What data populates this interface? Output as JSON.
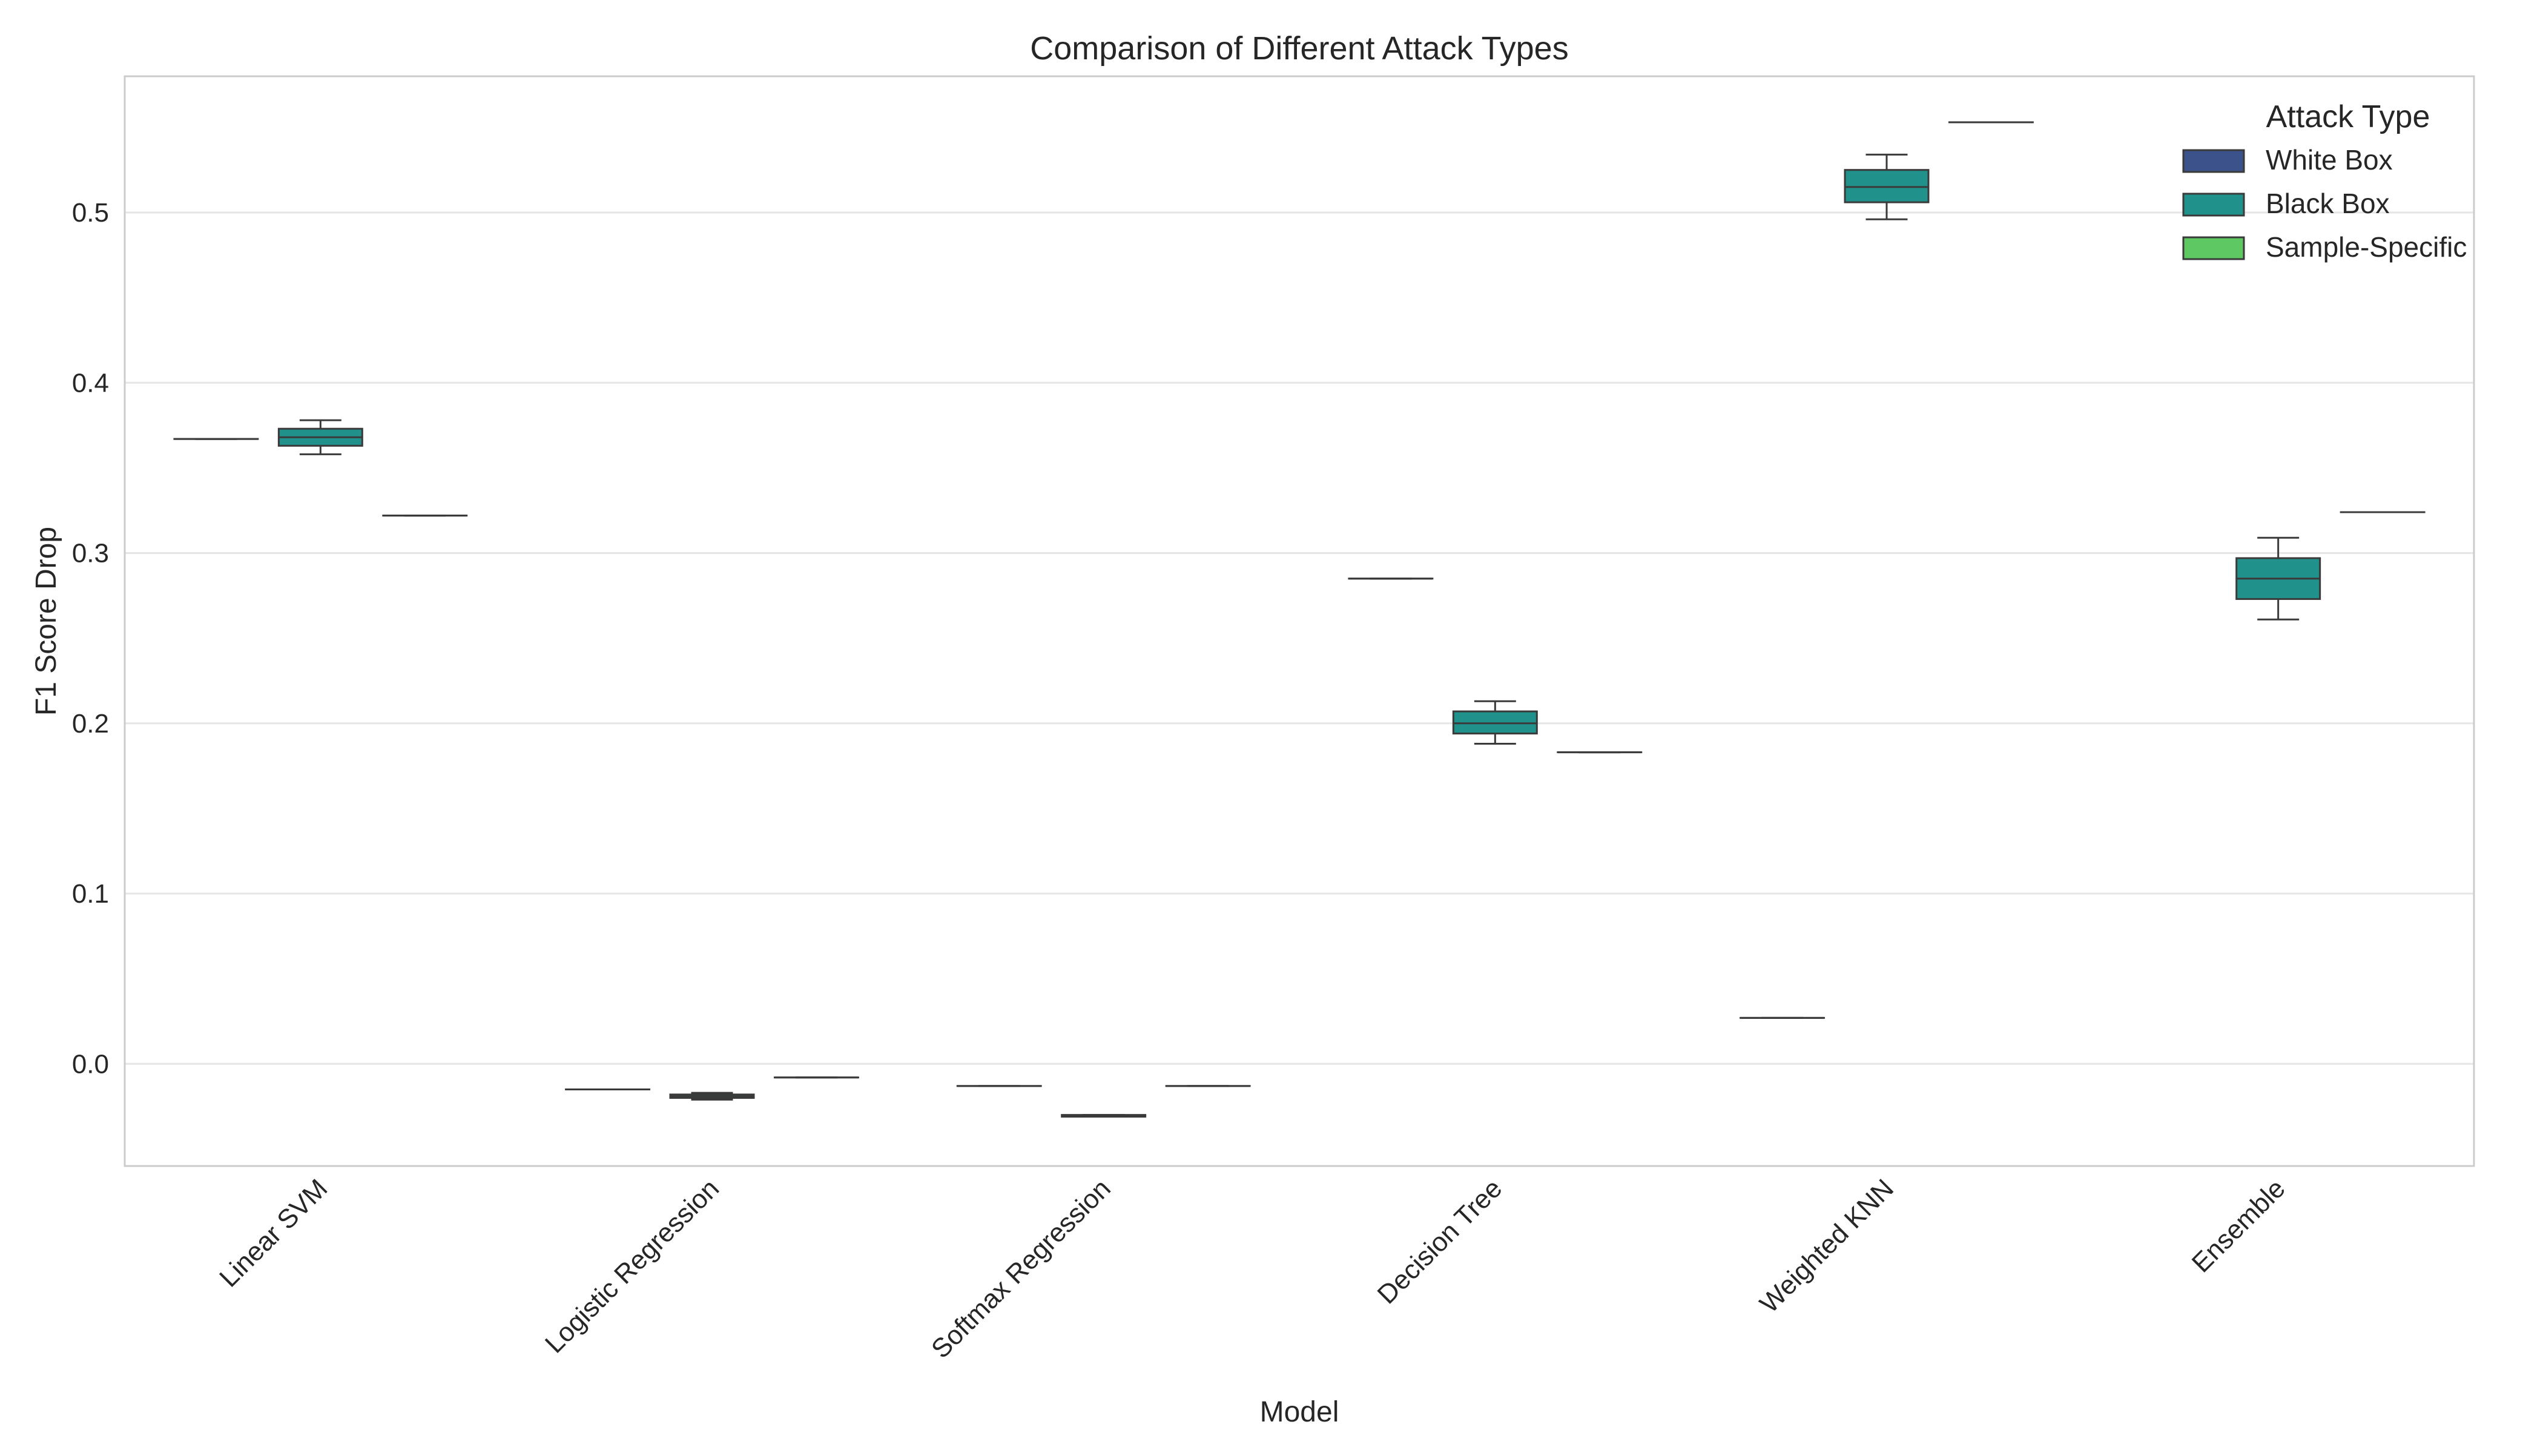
{
  "chart_data": {
    "type": "box",
    "title": "Comparison of Different Attack Types",
    "xlabel": "Model",
    "ylabel": "F1 Score Drop",
    "ylim": [
      -0.06,
      0.58
    ],
    "yticks": [
      0.0,
      0.1,
      0.2,
      0.3,
      0.4,
      0.5
    ],
    "ytick_labels": [
      "0.0",
      "0.1",
      "0.2",
      "0.3",
      "0.4",
      "0.5"
    ],
    "grid": "horizontal",
    "legend_title": "Attack Type",
    "legend_position": "top-right",
    "categories": [
      "Linear SVM",
      "Logistic Regression",
      "Softmax Regression",
      "Decision Tree",
      "Weighted KNN",
      "Ensemble"
    ],
    "series": [
      {
        "name": "White Box",
        "color": "#3b528b",
        "boxes": [
          {
            "whislo": 0.367,
            "q1": 0.367,
            "med": 0.367,
            "q3": 0.367,
            "whishi": 0.367
          },
          {
            "whislo": -0.015,
            "q1": -0.015,
            "med": -0.015,
            "q3": -0.015,
            "whishi": -0.015
          },
          {
            "whislo": -0.013,
            "q1": -0.013,
            "med": -0.013,
            "q3": -0.013,
            "whishi": -0.013
          },
          {
            "whislo": 0.285,
            "q1": 0.285,
            "med": 0.285,
            "q3": 0.285,
            "whishi": 0.285
          },
          {
            "whislo": 0.027,
            "q1": 0.027,
            "med": 0.027,
            "q3": 0.027,
            "whishi": 0.027
          },
          {
            "whislo": null,
            "q1": null,
            "med": null,
            "q3": null,
            "whishi": null
          }
        ]
      },
      {
        "name": "Black Box",
        "color": "#21918c",
        "boxes": [
          {
            "whislo": 0.358,
            "q1": 0.363,
            "med": 0.368,
            "q3": 0.373,
            "whishi": 0.378
          },
          {
            "whislo": -0.021,
            "q1": -0.02,
            "med": -0.019,
            "q3": -0.018,
            "whishi": -0.017
          },
          {
            "whislo": -0.031,
            "q1": -0.031,
            "med": -0.031,
            "q3": -0.03,
            "whishi": -0.03
          },
          {
            "whislo": 0.188,
            "q1": 0.194,
            "med": 0.2,
            "q3": 0.207,
            "whishi": 0.213
          },
          {
            "whislo": 0.496,
            "q1": 0.506,
            "med": 0.515,
            "q3": 0.525,
            "whishi": 0.534
          },
          {
            "whislo": 0.261,
            "q1": 0.273,
            "med": 0.285,
            "q3": 0.297,
            "whishi": 0.309
          }
        ]
      },
      {
        "name": "Sample-Specific",
        "color": "#5ec962",
        "boxes": [
          {
            "whislo": 0.322,
            "q1": 0.322,
            "med": 0.322,
            "q3": 0.322,
            "whishi": 0.322
          },
          {
            "whislo": -0.008,
            "q1": -0.008,
            "med": -0.008,
            "q3": -0.008,
            "whishi": -0.008
          },
          {
            "whislo": -0.013,
            "q1": -0.013,
            "med": -0.013,
            "q3": -0.013,
            "whishi": -0.013
          },
          {
            "whislo": 0.183,
            "q1": 0.183,
            "med": 0.183,
            "q3": 0.183,
            "whishi": 0.183
          },
          {
            "whislo": 0.553,
            "q1": 0.553,
            "med": 0.553,
            "q3": 0.553,
            "whishi": 0.553
          },
          {
            "whislo": 0.324,
            "q1": 0.324,
            "med": 0.324,
            "q3": 0.324,
            "whishi": 0.324
          }
        ]
      }
    ]
  }
}
